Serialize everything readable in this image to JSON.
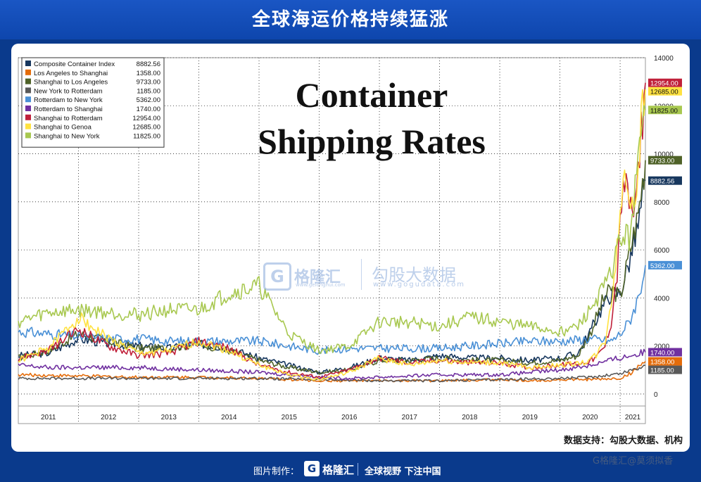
{
  "banner_title": "全球海运价格持续猛涨",
  "source_note": "数据支持：勾股大数据、机构",
  "footer": {
    "made_by": "图片制作：",
    "logo_glyph": "G",
    "logo_text": "格隆汇",
    "slogan": "全球视野 下注中国"
  },
  "watermarks": {
    "brand1": "格隆汇",
    "brand1_url": "www.gelonghui.com",
    "brand2": "勾股大数据",
    "brand2_url": "www.gogudata.com",
    "corner": "G格隆汇@莫须拟香"
  },
  "chart_data": {
    "type": "line",
    "title": "Container Shipping Rates",
    "title_lines": [
      "Container",
      "Shipping Rates"
    ],
    "xlabel": "",
    "ylabel": "",
    "x_range": [
      2011.0,
      2021.42
    ],
    "ylim": [
      -500,
      14000
    ],
    "yticks": [
      0,
      2000,
      4000,
      6000,
      8000,
      10000,
      12000,
      14000
    ],
    "year_labels": [
      "2011",
      "2012",
      "2013",
      "2014",
      "2015",
      "2016",
      "2017",
      "2018",
      "2019",
      "2020",
      "2021"
    ],
    "grid": true,
    "legend_position": "top-left",
    "series": [
      {
        "name": "Composite Container Index",
        "last": "8882.56",
        "color": "#17375e",
        "x": [
          2011.0,
          2011.5,
          2012.0,
          2012.5,
          2013.0,
          2013.5,
          2014.0,
          2014.5,
          2015.0,
          2015.5,
          2016.0,
          2016.5,
          2017.0,
          2017.5,
          2018.0,
          2018.5,
          2019.0,
          2019.5,
          2020.0,
          2020.3,
          2020.5,
          2020.7,
          2020.85,
          2021.0,
          2021.15,
          2021.3,
          2021.42
        ],
        "y": [
          1600,
          1700,
          2300,
          2100,
          2000,
          1900,
          2100,
          1900,
          1500,
          1200,
          900,
          1100,
          1500,
          1400,
          1600,
          1500,
          1500,
          1400,
          1500,
          1700,
          2600,
          3600,
          4200,
          4200,
          5500,
          7000,
          8883
        ]
      },
      {
        "name": "Los Angeles to Shanghai",
        "last": "1358.00",
        "color": "#e46c0a",
        "x": [
          2011.0,
          2012.0,
          2013.0,
          2014.0,
          2015.0,
          2016.0,
          2017.0,
          2018.0,
          2019.0,
          2019.5,
          2020.0,
          2020.5,
          2021.0,
          2021.2,
          2021.42
        ],
        "y": [
          800,
          750,
          700,
          700,
          650,
          550,
          550,
          550,
          600,
          550,
          600,
          600,
          650,
          900,
          1358
        ]
      },
      {
        "name": "Shanghai to Los Angeles",
        "last": "9733.00",
        "color": "#4f6228",
        "x": [
          2011.0,
          2011.5,
          2012.0,
          2012.5,
          2013.0,
          2013.5,
          2014.0,
          2014.5,
          2015.0,
          2015.5,
          2016.0,
          2016.5,
          2017.0,
          2017.5,
          2018.0,
          2018.5,
          2019.0,
          2019.5,
          2020.0,
          2020.3,
          2020.5,
          2020.7,
          2020.85,
          2021.0,
          2021.15,
          2021.3,
          2021.42
        ],
        "y": [
          1500,
          1800,
          2500,
          2200,
          1900,
          1900,
          2100,
          1800,
          1400,
          1100,
          900,
          1000,
          1400,
          1400,
          1500,
          1400,
          1400,
          1300,
          1400,
          1600,
          2500,
          3800,
          4400,
          4000,
          5800,
          7500,
          9733
        ]
      },
      {
        "name": "New York to Rotterdam",
        "last": "1185.00",
        "color": "#595959",
        "x": [
          2011.0,
          2012.0,
          2013.0,
          2014.0,
          2015.0,
          2016.0,
          2017.0,
          2018.0,
          2019.0,
          2020.0,
          2020.5,
          2021.0,
          2021.42
        ],
        "y": [
          650,
          650,
          650,
          650,
          650,
          600,
          550,
          550,
          600,
          650,
          700,
          850,
          1185
        ]
      },
      {
        "name": "Rotterdam to New York",
        "last": "5362.00",
        "color": "#4a90d6",
        "x": [
          2011.0,
          2011.5,
          2012.0,
          2012.5,
          2013.0,
          2013.5,
          2014.0,
          2014.5,
          2015.0,
          2015.5,
          2016.0,
          2016.5,
          2017.0,
          2017.5,
          2018.0,
          2018.5,
          2019.0,
          2019.5,
          2020.0,
          2020.5,
          2020.85,
          2021.0,
          2021.15,
          2021.3,
          2021.42
        ],
        "y": [
          2600,
          2500,
          2400,
          2300,
          2300,
          2200,
          2200,
          2200,
          2200,
          2000,
          1800,
          1900,
          1900,
          1900,
          1900,
          2000,
          2100,
          2200,
          2200,
          2300,
          2200,
          2500,
          3000,
          4000,
          5362
        ]
      },
      {
        "name": "Rotterdam to Shanghai",
        "last": "1740.00",
        "color": "#7030a0",
        "x": [
          2011.0,
          2011.5,
          2012.0,
          2013.0,
          2014.0,
          2015.0,
          2016.0,
          2016.5,
          2017.0,
          2018.0,
          2019.0,
          2019.5,
          2020.0,
          2020.5,
          2021.0,
          2021.42
        ],
        "y": [
          1200,
          1100,
          1100,
          1100,
          1000,
          900,
          700,
          650,
          700,
          800,
          800,
          900,
          1000,
          1200,
          1500,
          1740
        ]
      },
      {
        "name": "Shanghai to Rotterdam",
        "last": "12954.00",
        "color": "#c0203a",
        "x": [
          2011.0,
          2011.5,
          2012.0,
          2012.5,
          2013.0,
          2013.5,
          2014.0,
          2014.5,
          2015.0,
          2015.5,
          2016.0,
          2016.5,
          2017.0,
          2017.5,
          2018.0,
          2018.5,
          2019.0,
          2019.5,
          2020.0,
          2020.4,
          2020.6,
          2020.75,
          2020.85,
          2020.95,
          2021.05,
          2021.15,
          2021.25,
          2021.35,
          2021.42
        ],
        "y": [
          1500,
          1800,
          2700,
          2000,
          1600,
          1700,
          2200,
          1900,
          1200,
          900,
          700,
          1000,
          1500,
          1300,
          1400,
          1300,
          1300,
          1100,
          1200,
          1300,
          1500,
          2000,
          3000,
          5000,
          9000,
          8000,
          7500,
          11000,
          12954
        ]
      },
      {
        "name": "Shanghai to Genoa",
        "last": "12685.00",
        "color": "#ffe240",
        "x": [
          2011.0,
          2011.5,
          2012.0,
          2012.5,
          2013.0,
          2013.5,
          2014.0,
          2014.5,
          2015.0,
          2015.5,
          2016.0,
          2016.5,
          2017.0,
          2017.5,
          2018.0,
          2018.5,
          2019.0,
          2019.5,
          2020.0,
          2020.4,
          2020.6,
          2020.75,
          2020.85,
          2020.95,
          2021.05,
          2021.15,
          2021.25,
          2021.35,
          2021.42
        ],
        "y": [
          1400,
          1900,
          3200,
          2300,
          1700,
          1800,
          2200,
          1800,
          1200,
          800,
          600,
          900,
          1500,
          1200,
          1400,
          1300,
          1300,
          1100,
          1200,
          1300,
          1600,
          2200,
          3800,
          6000,
          9000,
          8500,
          8000,
          11500,
          12685
        ]
      },
      {
        "name": "Shanghai to New York",
        "last": "11825.00",
        "color": "#a8c850",
        "x": [
          2011.0,
          2011.5,
          2012.0,
          2012.5,
          2013.0,
          2013.5,
          2014.0,
          2014.5,
          2015.0,
          2015.5,
          2016.0,
          2016.5,
          2017.0,
          2017.5,
          2018.0,
          2018.5,
          2019.0,
          2019.5,
          2020.0,
          2020.3,
          2020.5,
          2020.7,
          2020.85,
          2021.0,
          2021.15,
          2021.3,
          2021.42
        ],
        "y": [
          3000,
          3400,
          3500,
          3400,
          3300,
          3500,
          3500,
          4200,
          4500,
          2500,
          1800,
          2000,
          3000,
          3000,
          2800,
          3200,
          3000,
          2800,
          2600,
          2800,
          3500,
          4300,
          5000,
          6500,
          6500,
          9500,
          11825
        ]
      }
    ]
  }
}
